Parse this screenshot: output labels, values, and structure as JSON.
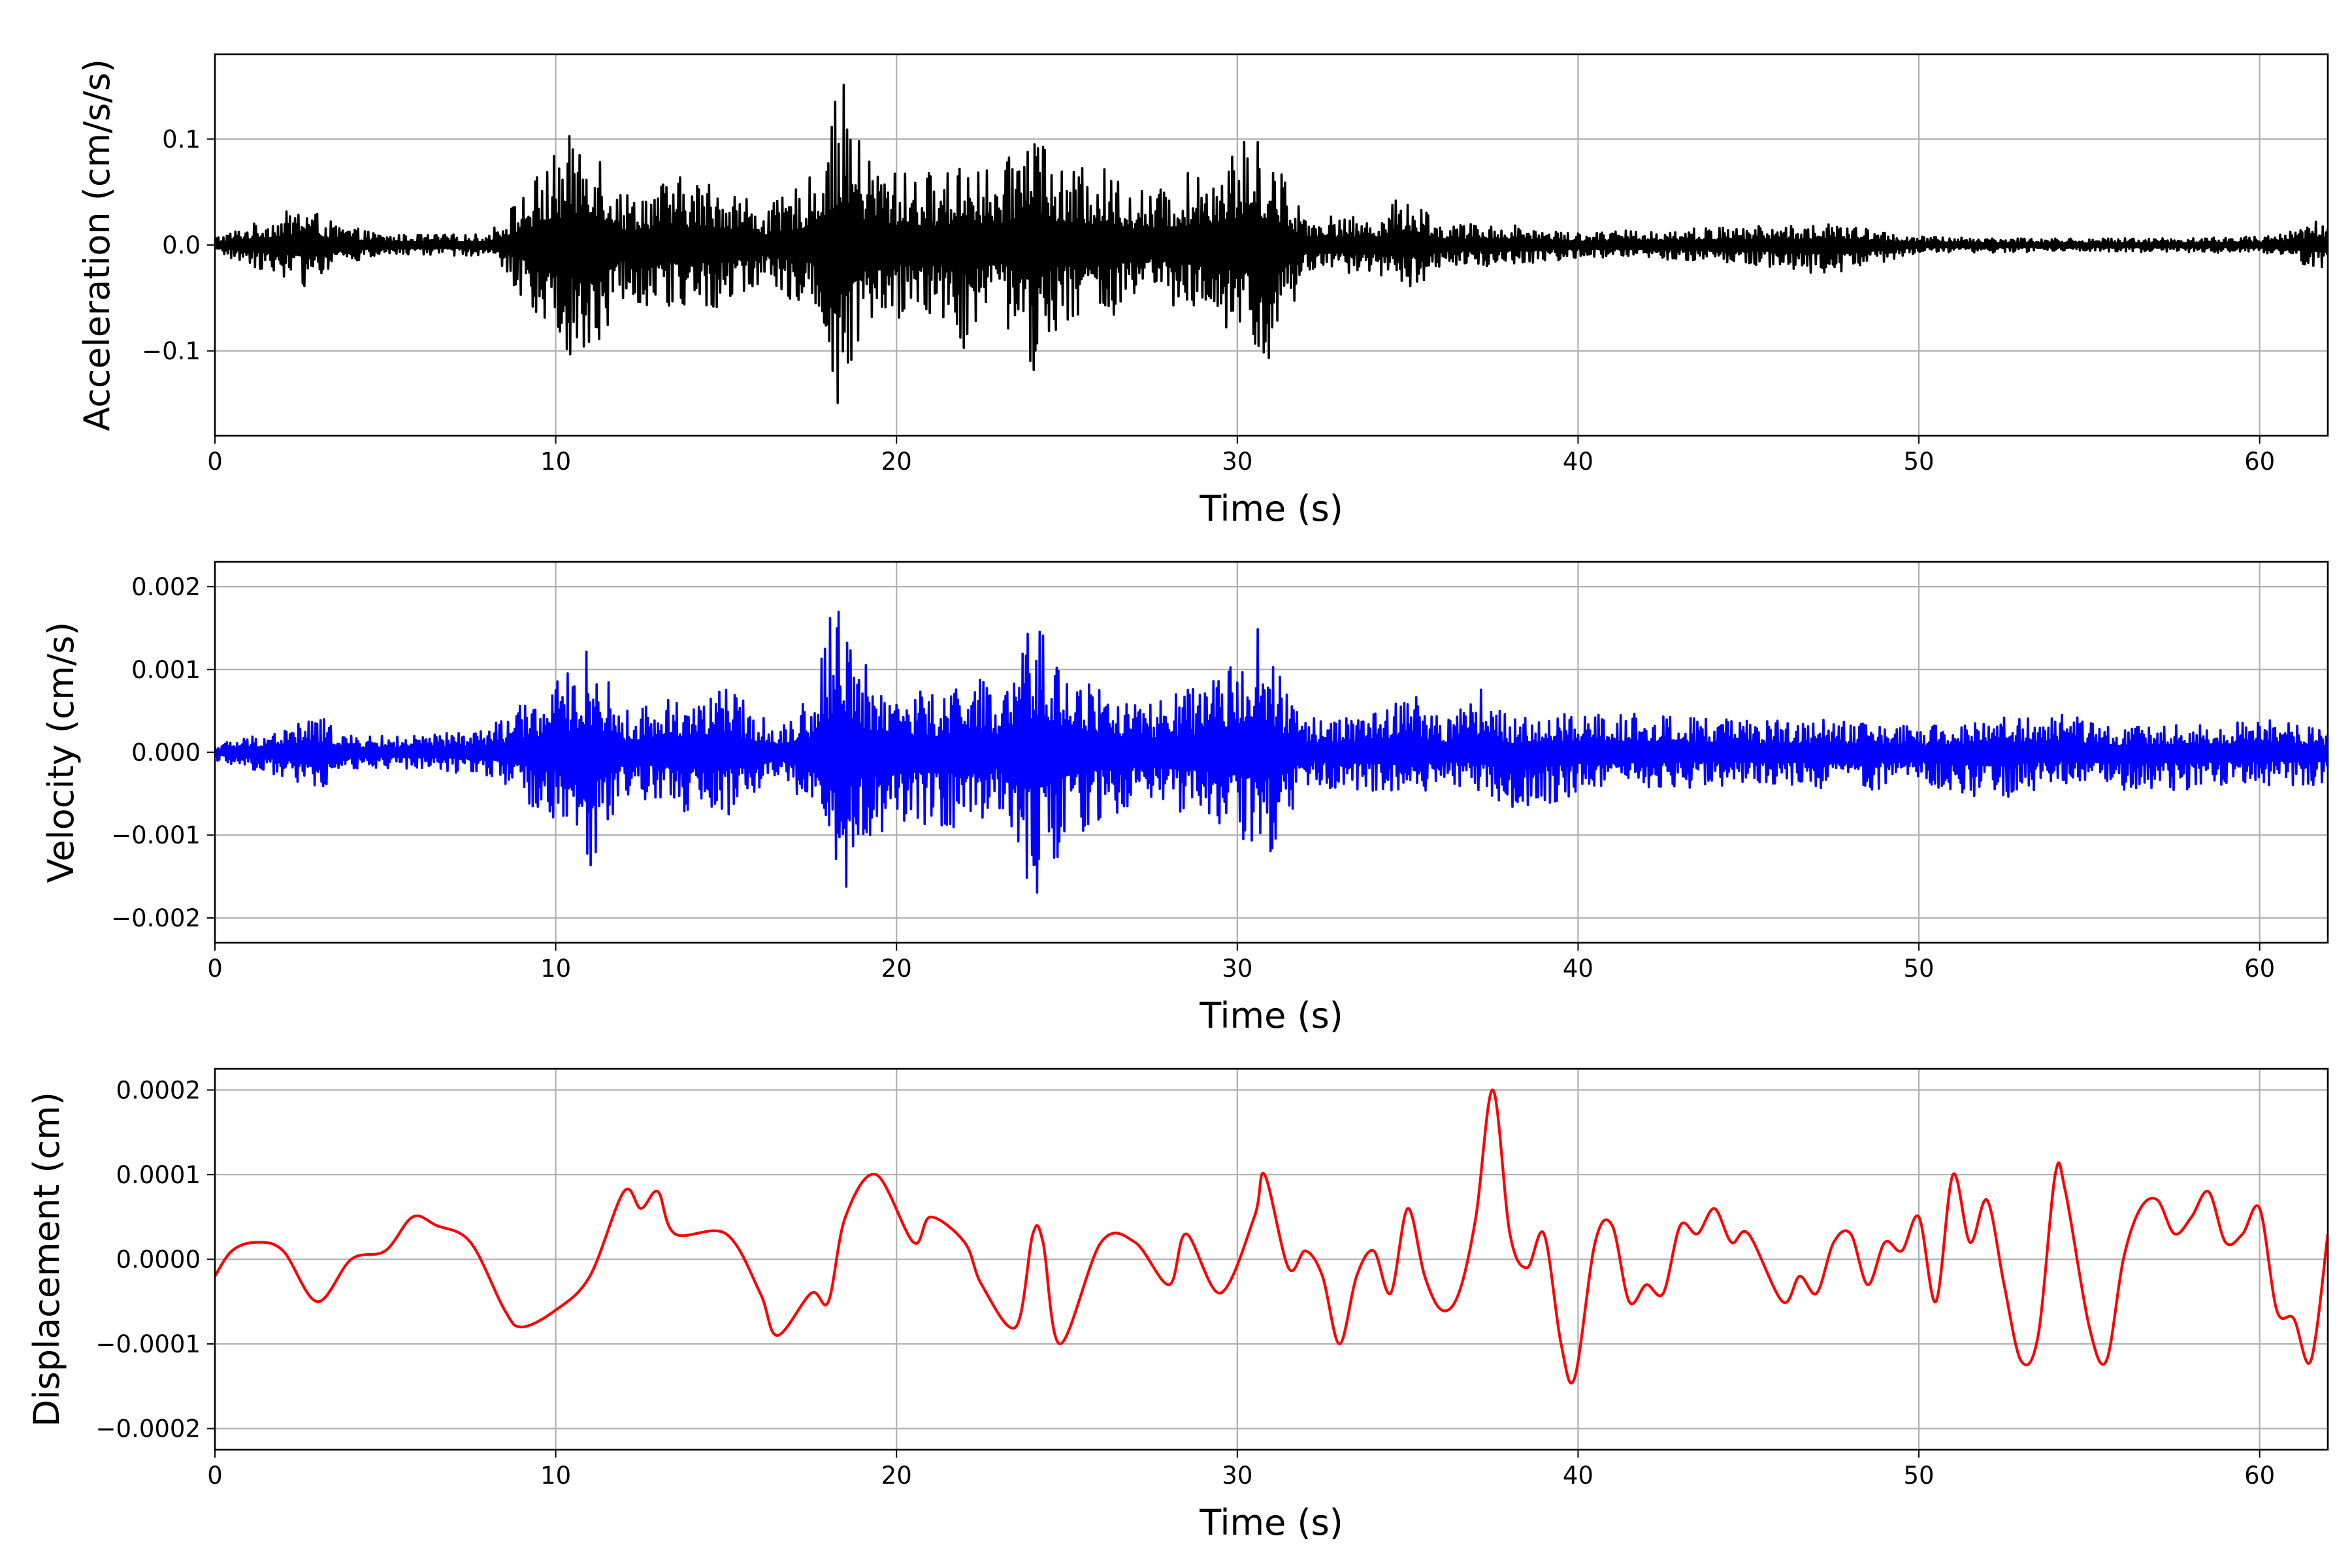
{
  "chart_data": [
    {
      "type": "line",
      "title": "",
      "xlabel": "Time (s)",
      "ylabel": "Acceleration (cm/s/s)",
      "xlim": [
        0,
        62
      ],
      "ylim": [
        -0.18,
        0.18
      ],
      "xticks": [
        0,
        10,
        20,
        30,
        40,
        50,
        60
      ],
      "xtick_labels": [
        "0",
        "10",
        "20",
        "30",
        "40",
        "50",
        "60"
      ],
      "yticks": [
        -0.1,
        0.0,
        0.1
      ],
      "ytick_labels": [
        "−0.1",
        "0.0",
        "0.1"
      ],
      "grid": true,
      "series": [
        {
          "color": "#000000",
          "envelope": {
            "x": [
              0,
              2,
              2.6,
              3.5,
              5,
              8,
              10.3,
              11,
              12,
              13.5,
              15,
              16.2,
              17.5,
              18.4,
              19,
              20,
              21.5,
              22,
              23,
              24,
              24.8,
              26,
              27.5,
              29.5,
              30.5,
              31,
              32,
              34,
              35,
              36,
              38,
              40,
              45,
              47.5,
              50,
              55,
              60,
              61.5,
              62
            ],
            "upper": [
              0.008,
              0.03,
              0.04,
              0.02,
              0.01,
              0.01,
              0.1,
              0.118,
              0.05,
              0.065,
              0.06,
              0.035,
              0.065,
              0.157,
              0.09,
              0.07,
              0.07,
              0.095,
              0.06,
              0.136,
              0.07,
              0.075,
              0.05,
              0.085,
              0.105,
              0.09,
              0.03,
              0.025,
              0.052,
              0.02,
              0.02,
              0.012,
              0.018,
              0.02,
              0.008,
              0.006,
              0.008,
              0.02,
              0.028
            ],
            "lower": [
              -0.008,
              -0.03,
              -0.04,
              -0.02,
              -0.01,
              -0.01,
              -0.1,
              -0.118,
              -0.05,
              -0.065,
              -0.06,
              -0.035,
              -0.065,
              -0.165,
              -0.09,
              -0.07,
              -0.07,
              -0.1,
              -0.06,
              -0.137,
              -0.07,
              -0.075,
              -0.05,
              -0.085,
              -0.105,
              -0.115,
              -0.03,
              -0.025,
              -0.045,
              -0.02,
              -0.02,
              -0.012,
              -0.018,
              -0.03,
              -0.008,
              -0.006,
              -0.008,
              -0.02,
              -0.025
            ]
          },
          "samples_per_second": 40
        }
      ]
    },
    {
      "type": "line",
      "title": "",
      "xlabel": "Time (s)",
      "ylabel": "Velocity (cm/s)",
      "xlim": [
        0,
        62
      ],
      "ylim": [
        -0.0023,
        0.0023
      ],
      "xticks": [
        0,
        10,
        20,
        30,
        40,
        50,
        60
      ],
      "xtick_labels": [
        "0",
        "10",
        "20",
        "30",
        "40",
        "50",
        "60"
      ],
      "yticks": [
        -0.002,
        -0.001,
        0.0,
        0.001,
        0.002
      ],
      "ytick_labels": [
        "−0.002",
        "−0.001",
        "0.000",
        "0.001",
        "0.002"
      ],
      "grid": true,
      "series": [
        {
          "color": "#0000ff",
          "envelope": {
            "x": [
              0,
              2,
              3,
              4,
              6,
              8,
              10.5,
              11,
              12,
              13.5,
              15,
              16.5,
              17.5,
              18.3,
              19,
              20,
              21.5,
              22,
              23,
              24,
              25,
              26,
              27.5,
              29.5,
              30.5,
              31,
              32,
              34,
              35,
              36,
              37.2,
              38,
              40,
              45,
              47.5,
              50,
              52,
              54,
              56,
              60,
              62
            ],
            "upper": [
              0.0001,
              0.0003,
              0.00045,
              0.0002,
              0.0002,
              0.0003,
              0.001,
              0.0013,
              0.0005,
              0.0007,
              0.0008,
              0.0003,
              0.0007,
              0.0021,
              0.0011,
              0.0008,
              0.0007,
              0.0012,
              0.0006,
              0.0016,
              0.0011,
              0.0008,
              0.0006,
              0.0009,
              0.0017,
              0.0011,
              0.0004,
              0.0005,
              0.0008,
              0.0004,
              0.0008,
              0.0004,
              0.0005,
              0.0004,
              0.0004,
              0.0003,
              0.0004,
              0.0005,
              0.0003,
              0.0004,
              0.0003
            ],
            "lower": [
              -0.0001,
              -0.0003,
              -0.0005,
              -0.0002,
              -0.0002,
              -0.0003,
              -0.001,
              -0.0014,
              -0.0005,
              -0.0007,
              -0.0008,
              -0.0003,
              -0.0008,
              -0.0019,
              -0.0011,
              -0.0009,
              -0.0009,
              -0.0011,
              -0.0007,
              -0.0018,
              -0.0011,
              -0.0008,
              -0.0006,
              -0.0009,
              -0.0012,
              -0.0012,
              -0.0004,
              -0.0005,
              -0.0006,
              -0.0004,
              -0.0005,
              -0.0008,
              -0.0005,
              -0.0004,
              -0.0005,
              -0.0004,
              -0.0006,
              -0.0004,
              -0.0005,
              -0.0004,
              -0.0004
            ]
          },
          "samples_per_second": 40
        }
      ]
    },
    {
      "type": "line",
      "title": "",
      "xlabel": "Time (s)",
      "ylabel": "Displacement (cm)",
      "xlim": [
        0,
        62
      ],
      "ylim": [
        -0.000225,
        0.000225
      ],
      "xticks": [
        0,
        10,
        20,
        30,
        40,
        50,
        60
      ],
      "xtick_labels": [
        "0",
        "10",
        "20",
        "30",
        "40",
        "50",
        "60"
      ],
      "yticks": [
        -0.0002,
        -0.0001,
        0.0,
        0.0001,
        0.0002
      ],
      "ytick_labels": [
        "−0.0002",
        "−0.0001",
        "0.0000",
        "0.0001",
        "0.0002"
      ],
      "grid": true,
      "series": [
        {
          "color": "#ff0000",
          "x": [
            0,
            0.5,
            1.2,
            2,
            3,
            4,
            5,
            5.8,
            6.5,
            7.5,
            8.5,
            9,
            10,
            11,
            12,
            12.5,
            13,
            13.5,
            15,
            16,
            16.5,
            17.5,
            18,
            18.5,
            19.4,
            20.5,
            21,
            22,
            22.5,
            23.5,
            24,
            24.3,
            24.8,
            26,
            27,
            28,
            28.5,
            29.5,
            30.5,
            30.8,
            31.5,
            32,
            32.5,
            33,
            33.5,
            34,
            34.5,
            35,
            35.5,
            36,
            36.5,
            37,
            37.5,
            38,
            38.5,
            39,
            39.5,
            39.9,
            40.5,
            41,
            41.5,
            42,
            42.5,
            43,
            43.5,
            44,
            44.5,
            45,
            46,
            46.5,
            47,
            47.5,
            48,
            48.5,
            49,
            49.5,
            50,
            50.5,
            51,
            51.5,
            52,
            52.5,
            53,
            53.5,
            54,
            54.3,
            55,
            55.5,
            56,
            56.5,
            57,
            57.5,
            58,
            58.5,
            59,
            59.5,
            60,
            60.5,
            61,
            61.5,
            62
          ],
          "y": [
            -2e-05,
            1e-05,
            2e-05,
            1e-05,
            -5e-05,
            0.0,
            1e-05,
            5e-05,
            4e-05,
            2e-05,
            -6e-05,
            -8e-05,
            -6e-05,
            -2e-05,
            8e-05,
            6e-05,
            8e-05,
            3e-05,
            3e-05,
            -4e-05,
            -9e-05,
            -4e-05,
            -5e-05,
            5e-05,
            0.0001,
            2e-05,
            5e-05,
            2e-05,
            -3e-05,
            -8e-05,
            3e-05,
            2e-05,
            -0.0001,
            2e-05,
            2e-05,
            -3e-05,
            3e-05,
            -4e-05,
            5e-05,
            0.0001,
            -1e-05,
            1e-05,
            -2e-05,
            -0.0001,
            -2e-05,
            1e-05,
            -4e-05,
            6e-05,
            -2e-05,
            -6e-05,
            -4e-05,
            5e-05,
            0.0002,
            3e-05,
            -1e-05,
            3e-05,
            -0.0001,
            -0.00014,
            2e-05,
            4e-05,
            -5e-05,
            -3e-05,
            -4e-05,
            4e-05,
            3e-05,
            6e-05,
            2e-05,
            3e-05,
            -5e-05,
            -2e-05,
            -4e-05,
            2e-05,
            3e-05,
            -3e-05,
            2e-05,
            1e-05,
            5e-05,
            -5e-05,
            0.0001,
            2e-05,
            7e-05,
            -3e-05,
            -0.00012,
            -9e-05,
            0.0001,
            8e-05,
            -8e-05,
            -0.00012,
            0.0,
            6e-05,
            7e-05,
            3e-05,
            5e-05,
            8e-05,
            2e-05,
            3e-05,
            6e-05,
            -6e-05,
            -7e-05,
            -0.00012,
            3e-05
          ]
        }
      ]
    }
  ]
}
